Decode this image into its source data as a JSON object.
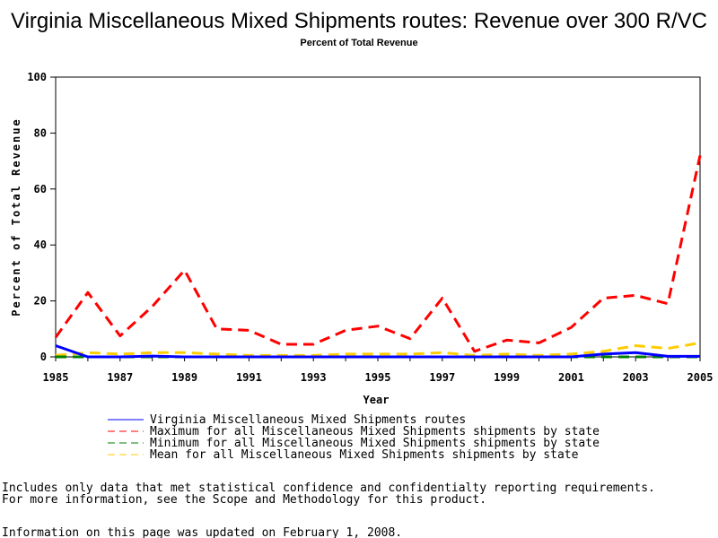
{
  "chart_data": {
    "type": "line",
    "title": "Virginia Miscellaneous Mixed Shipments routes: Revenue over 300 R/VC",
    "subtitle": "Percent of Total Revenue",
    "xlabel": "Year",
    "ylabel": "Percent of Total Revenue",
    "xlim": [
      1985,
      2005
    ],
    "ylim": [
      0,
      100
    ],
    "x_ticks": [
      "1985",
      "1987",
      "1989",
      "1991",
      "1993",
      "1995",
      "1997",
      "1999",
      "2001",
      "2003",
      "2005"
    ],
    "y_ticks": [
      "0",
      "20",
      "40",
      "60",
      "80",
      "100"
    ],
    "x": [
      1985,
      1986,
      1987,
      1988,
      1989,
      1990,
      1991,
      1992,
      1993,
      1994,
      1995,
      1996,
      1997,
      1998,
      1999,
      2000,
      2001,
      2002,
      2003,
      2004,
      2005
    ],
    "series": [
      {
        "name": "Virginia Miscellaneous Mixed Shipments routes",
        "color": "#0000ff",
        "style": "solid",
        "values": [
          4,
          0,
          0,
          0.3,
          0,
          0,
          0,
          0,
          0,
          0,
          0,
          0,
          0,
          0,
          0,
          0,
          0,
          1,
          1.5,
          0.2,
          0.2
        ]
      },
      {
        "name": "Maximum for all Miscellaneous Mixed Shipments shipments by state",
        "color": "#ff0000",
        "style": "dashed",
        "values": [
          7,
          23,
          7.5,
          18,
          31,
          10,
          9.5,
          4.5,
          4.5,
          9.5,
          11,
          6.5,
          21,
          2,
          6,
          5,
          10.5,
          21,
          22,
          19,
          72
        ]
      },
      {
        "name": "Minimum for all Miscellaneous Mixed Shipments shipments by state",
        "color": "#008000",
        "style": "dashed",
        "values": [
          0,
          0,
          0,
          0,
          0,
          0,
          0,
          0,
          0,
          0,
          0,
          0,
          0,
          0,
          0,
          0,
          0,
          0,
          0,
          0,
          0
        ]
      },
      {
        "name": "Mean for all Miscellaneous Mixed Shipments shipments by state",
        "color": "#ffcc00",
        "style": "dashed",
        "values": [
          0.5,
          1.5,
          1,
          1.5,
          1.5,
          1,
          0.5,
          0.5,
          0.5,
          1,
          1,
          1,
          1.5,
          0.5,
          1,
          0.5,
          1,
          2,
          4,
          3,
          5
        ]
      }
    ],
    "legend_position": "bottom"
  },
  "notes": {
    "line1": "Includes only data that met statistical confidence and confidentialty reporting requirements.",
    "line2": "For more information, see the Scope and Methodology for this product.",
    "line3": "Information on this page was updated on February 1, 2008."
  }
}
